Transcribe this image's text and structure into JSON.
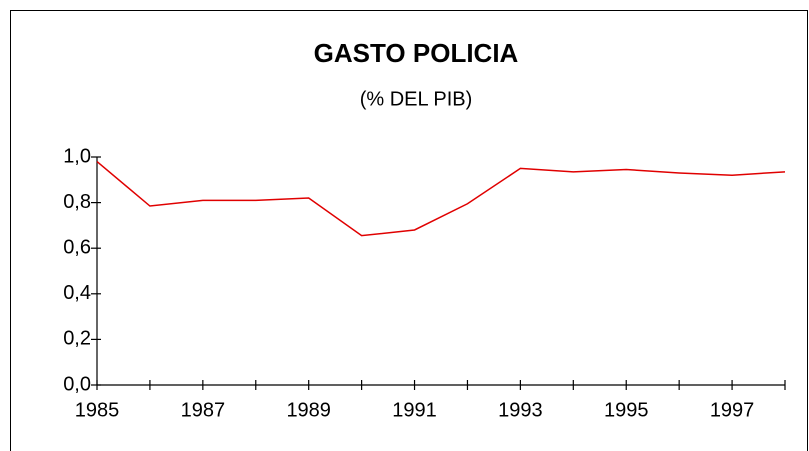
{
  "chart_data": {
    "type": "line",
    "title": "GASTO POLICIA",
    "subtitle": "(% DEL PIB)",
    "x": [
      1985,
      1986,
      1987,
      1988,
      1989,
      1990,
      1991,
      1992,
      1993,
      1994,
      1995,
      1996,
      1997,
      1998
    ],
    "series": [
      {
        "name": "Gasto policia",
        "color": "#e00000",
        "values": [
          0.98,
          0.785,
          0.81,
          0.81,
          0.82,
          0.655,
          0.68,
          0.795,
          0.95,
          0.935,
          0.945,
          0.93,
          0.92,
          0.935
        ]
      }
    ],
    "xlim": [
      1985,
      1998
    ],
    "xticks": [
      1985,
      1987,
      1989,
      1991,
      1993,
      1995,
      1997
    ],
    "xminor_ticks": [
      1986,
      1988,
      1990,
      1992,
      1994,
      1996,
      1998
    ],
    "ylim": [
      0,
      1
    ],
    "yticks": [
      {
        "value": 0,
        "label": "0,0"
      },
      {
        "value": 0.2,
        "label": "0,2"
      },
      {
        "value": 0.4,
        "label": "0,4"
      },
      {
        "value": 0.6,
        "label": "0,6"
      },
      {
        "value": 0.8,
        "label": "0,8"
      },
      {
        "value": 1,
        "label": "1,0"
      }
    ],
    "grid": false
  }
}
